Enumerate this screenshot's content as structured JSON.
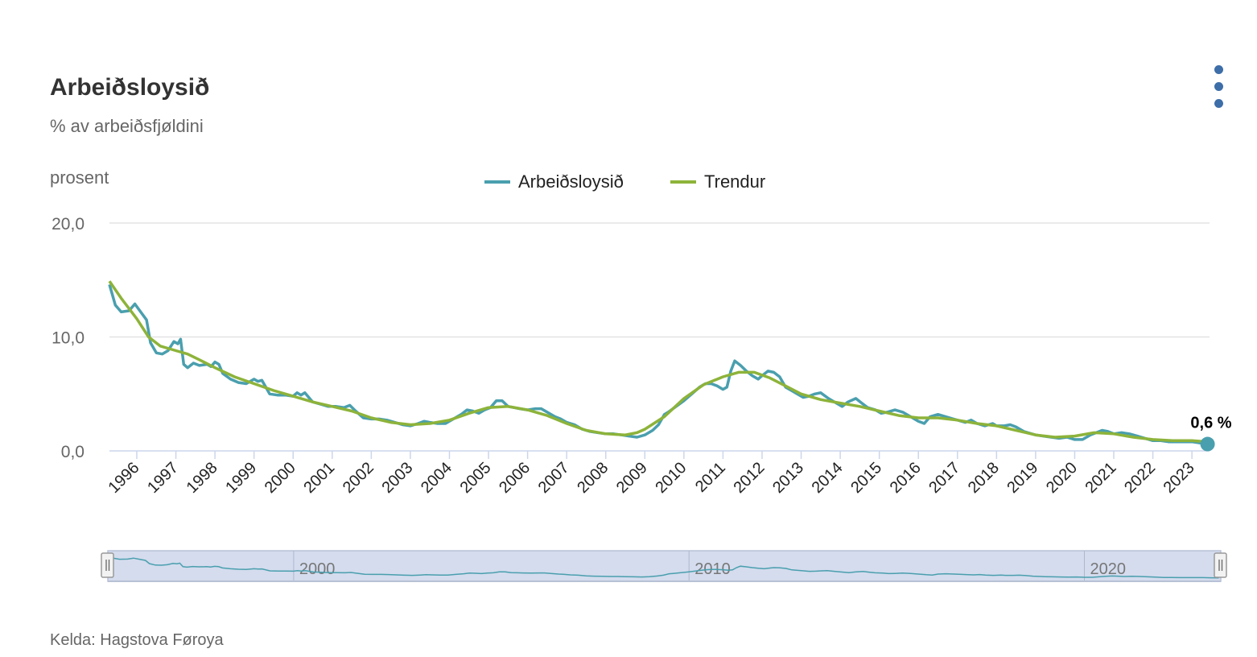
{
  "title": "Arbeiðsloysið",
  "subtitle": "% av arbeiðsfjøldini",
  "source": "Kelda: Hagstova Føroya",
  "menu_icon": "kebab-menu-icon",
  "colors": {
    "arbeidsloysid": "#4a9fae",
    "trendur": "#8db33a",
    "grid": "#e3e3e3",
    "navigator_fill": "#ccd6eb"
  },
  "chart_data": {
    "type": "line",
    "ylabel": "prosent",
    "ylim": [
      0,
      20
    ],
    "yticks": [
      "0,0",
      "10,0",
      "20,0"
    ],
    "x_tick_labels": [
      "1996",
      "1997",
      "1998",
      "1999",
      "2000",
      "2001",
      "2002",
      "2003",
      "2004",
      "2005",
      "2006",
      "2007",
      "2008",
      "2009",
      "2010",
      "2011",
      "2012",
      "2013",
      "2014",
      "2015",
      "2016",
      "2017",
      "2018",
      "2019",
      "2020",
      "2021",
      "2022",
      "2023"
    ],
    "xlim": [
      1995.3,
      2023.45
    ],
    "navigator_labels": [
      "2000",
      "2010",
      "2020"
    ],
    "last_value_label": "0,6 %",
    "series": [
      {
        "name": "Arbeiðsloysið",
        "color": "#4a9fae",
        "points": [
          [
            1995.3,
            14.6
          ],
          [
            1995.45,
            12.8
          ],
          [
            1995.6,
            12.2
          ],
          [
            1995.8,
            12.3
          ],
          [
            1995.95,
            12.9
          ],
          [
            1996.1,
            12.2
          ],
          [
            1996.25,
            11.5
          ],
          [
            1996.35,
            9.5
          ],
          [
            1996.5,
            8.6
          ],
          [
            1996.65,
            8.5
          ],
          [
            1996.8,
            8.8
          ],
          [
            1996.95,
            9.6
          ],
          [
            1997.05,
            9.4
          ],
          [
            1997.12,
            9.8
          ],
          [
            1997.2,
            7.6
          ],
          [
            1997.3,
            7.3
          ],
          [
            1997.45,
            7.7
          ],
          [
            1997.6,
            7.5
          ],
          [
            1997.8,
            7.6
          ],
          [
            1997.9,
            7.4
          ],
          [
            1998.0,
            7.8
          ],
          [
            1998.1,
            7.6
          ],
          [
            1998.2,
            6.8
          ],
          [
            1998.4,
            6.3
          ],
          [
            1998.6,
            6.0
          ],
          [
            1998.8,
            5.9
          ],
          [
            1999.0,
            6.3
          ],
          [
            1999.1,
            6.1
          ],
          [
            1999.2,
            6.2
          ],
          [
            1999.4,
            5.0
          ],
          [
            1999.6,
            4.9
          ],
          [
            1999.8,
            4.9
          ],
          [
            2000.0,
            4.8
          ],
          [
            2000.1,
            5.1
          ],
          [
            2000.2,
            4.9
          ],
          [
            2000.3,
            5.1
          ],
          [
            2000.5,
            4.3
          ],
          [
            2000.7,
            4.1
          ],
          [
            2000.9,
            3.9
          ],
          [
            2001.1,
            3.9
          ],
          [
            2001.3,
            3.8
          ],
          [
            2001.45,
            4.0
          ],
          [
            2001.6,
            3.5
          ],
          [
            2001.8,
            2.9
          ],
          [
            2002.0,
            2.8
          ],
          [
            2002.2,
            2.8
          ],
          [
            2002.4,
            2.7
          ],
          [
            2002.6,
            2.5
          ],
          [
            2002.8,
            2.3
          ],
          [
            2003.0,
            2.2
          ],
          [
            2003.2,
            2.4
          ],
          [
            2003.35,
            2.6
          ],
          [
            2003.5,
            2.5
          ],
          [
            2003.7,
            2.4
          ],
          [
            2003.9,
            2.4
          ],
          [
            2004.1,
            2.8
          ],
          [
            2004.3,
            3.2
          ],
          [
            2004.45,
            3.6
          ],
          [
            2004.6,
            3.5
          ],
          [
            2004.75,
            3.3
          ],
          [
            2004.9,
            3.6
          ],
          [
            2005.05,
            3.8
          ],
          [
            2005.2,
            4.4
          ],
          [
            2005.35,
            4.4
          ],
          [
            2005.5,
            3.9
          ],
          [
            2005.65,
            3.8
          ],
          [
            2005.8,
            3.7
          ],
          [
            2006.0,
            3.6
          ],
          [
            2006.2,
            3.7
          ],
          [
            2006.35,
            3.7
          ],
          [
            2006.5,
            3.4
          ],
          [
            2006.7,
            3.0
          ],
          [
            2006.85,
            2.8
          ],
          [
            2007.0,
            2.5
          ],
          [
            2007.2,
            2.3
          ],
          [
            2007.4,
            1.9
          ],
          [
            2007.6,
            1.7
          ],
          [
            2007.8,
            1.6
          ],
          [
            2008.0,
            1.5
          ],
          [
            2008.2,
            1.5
          ],
          [
            2008.4,
            1.4
          ],
          [
            2008.6,
            1.3
          ],
          [
            2008.8,
            1.2
          ],
          [
            2009.0,
            1.4
          ],
          [
            2009.2,
            1.8
          ],
          [
            2009.35,
            2.3
          ],
          [
            2009.5,
            3.2
          ],
          [
            2009.6,
            3.4
          ],
          [
            2009.8,
            3.9
          ],
          [
            2010.0,
            4.4
          ],
          [
            2010.2,
            5.0
          ],
          [
            2010.4,
            5.6
          ],
          [
            2010.55,
            5.9
          ],
          [
            2010.7,
            5.9
          ],
          [
            2010.85,
            5.7
          ],
          [
            2011.0,
            5.4
          ],
          [
            2011.1,
            5.6
          ],
          [
            2011.2,
            7.0
          ],
          [
            2011.3,
            7.9
          ],
          [
            2011.45,
            7.5
          ],
          [
            2011.6,
            7.0
          ],
          [
            2011.75,
            6.6
          ],
          [
            2011.9,
            6.3
          ],
          [
            2012.0,
            6.6
          ],
          [
            2012.15,
            7.0
          ],
          [
            2012.3,
            6.9
          ],
          [
            2012.45,
            6.5
          ],
          [
            2012.6,
            5.6
          ],
          [
            2012.75,
            5.3
          ],
          [
            2012.9,
            5.0
          ],
          [
            2013.05,
            4.7
          ],
          [
            2013.2,
            4.8
          ],
          [
            2013.35,
            5.0
          ],
          [
            2013.5,
            5.1
          ],
          [
            2013.7,
            4.6
          ],
          [
            2013.9,
            4.2
          ],
          [
            2014.05,
            3.9
          ],
          [
            2014.2,
            4.3
          ],
          [
            2014.4,
            4.6
          ],
          [
            2014.55,
            4.2
          ],
          [
            2014.7,
            3.8
          ],
          [
            2014.9,
            3.6
          ],
          [
            2015.05,
            3.3
          ],
          [
            2015.2,
            3.4
          ],
          [
            2015.4,
            3.6
          ],
          [
            2015.6,
            3.4
          ],
          [
            2015.8,
            3.0
          ],
          [
            2016.0,
            2.6
          ],
          [
            2016.15,
            2.4
          ],
          [
            2016.3,
            3.0
          ],
          [
            2016.5,
            3.2
          ],
          [
            2016.7,
            3.0
          ],
          [
            2016.9,
            2.8
          ],
          [
            2017.0,
            2.7
          ],
          [
            2017.2,
            2.5
          ],
          [
            2017.35,
            2.7
          ],
          [
            2017.5,
            2.4
          ],
          [
            2017.7,
            2.2
          ],
          [
            2017.9,
            2.4
          ],
          [
            2018.0,
            2.2
          ],
          [
            2018.2,
            2.2
          ],
          [
            2018.35,
            2.3
          ],
          [
            2018.5,
            2.1
          ],
          [
            2018.7,
            1.7
          ],
          [
            2018.9,
            1.5
          ],
          [
            2019.0,
            1.4
          ],
          [
            2019.2,
            1.3
          ],
          [
            2019.4,
            1.2
          ],
          [
            2019.6,
            1.1
          ],
          [
            2019.8,
            1.2
          ],
          [
            2020.0,
            1.0
          ],
          [
            2020.2,
            1.0
          ],
          [
            2020.4,
            1.4
          ],
          [
            2020.55,
            1.6
          ],
          [
            2020.7,
            1.8
          ],
          [
            2020.85,
            1.7
          ],
          [
            2021.0,
            1.5
          ],
          [
            2021.2,
            1.6
          ],
          [
            2021.4,
            1.5
          ],
          [
            2021.6,
            1.3
          ],
          [
            2021.8,
            1.1
          ],
          [
            2022.0,
            0.9
          ],
          [
            2022.2,
            0.9
          ],
          [
            2022.4,
            0.8
          ],
          [
            2022.6,
            0.8
          ],
          [
            2022.8,
            0.8
          ],
          [
            2023.0,
            0.8
          ],
          [
            2023.2,
            0.7
          ],
          [
            2023.4,
            0.6
          ]
        ]
      },
      {
        "name": "Trendur",
        "color": "#8db33a",
        "points": [
          [
            1995.3,
            14.9
          ],
          [
            1995.6,
            13.4
          ],
          [
            1996.0,
            11.6
          ],
          [
            1996.3,
            10.0
          ],
          [
            1996.6,
            9.2
          ],
          [
            1997.0,
            8.8
          ],
          [
            1997.3,
            8.5
          ],
          [
            1997.6,
            8.0
          ],
          [
            1998.0,
            7.3
          ],
          [
            1998.5,
            6.5
          ],
          [
            1999.0,
            5.9
          ],
          [
            1999.5,
            5.3
          ],
          [
            2000.0,
            4.8
          ],
          [
            2000.5,
            4.3
          ],
          [
            2001.0,
            3.9
          ],
          [
            2001.5,
            3.5
          ],
          [
            2002.0,
            2.9
          ],
          [
            2002.5,
            2.5
          ],
          [
            2003.0,
            2.3
          ],
          [
            2003.5,
            2.4
          ],
          [
            2004.0,
            2.7
          ],
          [
            2004.5,
            3.3
          ],
          [
            2005.0,
            3.8
          ],
          [
            2005.5,
            3.9
          ],
          [
            2006.0,
            3.6
          ],
          [
            2006.5,
            3.1
          ],
          [
            2007.0,
            2.4
          ],
          [
            2007.5,
            1.8
          ],
          [
            2008.0,
            1.5
          ],
          [
            2008.5,
            1.4
          ],
          [
            2008.8,
            1.6
          ],
          [
            2009.0,
            1.9
          ],
          [
            2009.5,
            3.0
          ],
          [
            2010.0,
            4.6
          ],
          [
            2010.5,
            5.8
          ],
          [
            2011.0,
            6.5
          ],
          [
            2011.4,
            6.9
          ],
          [
            2011.8,
            6.9
          ],
          [
            2012.2,
            6.4
          ],
          [
            2012.6,
            5.7
          ],
          [
            2013.0,
            5.0
          ],
          [
            2013.5,
            4.5
          ],
          [
            2014.0,
            4.2
          ],
          [
            2014.5,
            3.9
          ],
          [
            2015.0,
            3.5
          ],
          [
            2015.5,
            3.1
          ],
          [
            2016.0,
            2.9
          ],
          [
            2016.5,
            2.9
          ],
          [
            2017.0,
            2.7
          ],
          [
            2017.5,
            2.4
          ],
          [
            2018.0,
            2.2
          ],
          [
            2018.5,
            1.8
          ],
          [
            2019.0,
            1.4
          ],
          [
            2019.5,
            1.2
          ],
          [
            2020.0,
            1.3
          ],
          [
            2020.5,
            1.6
          ],
          [
            2021.0,
            1.5
          ],
          [
            2021.5,
            1.2
          ],
          [
            2022.0,
            1.0
          ],
          [
            2022.5,
            0.9
          ],
          [
            2023.0,
            0.9
          ],
          [
            2023.4,
            0.8
          ]
        ]
      }
    ]
  }
}
